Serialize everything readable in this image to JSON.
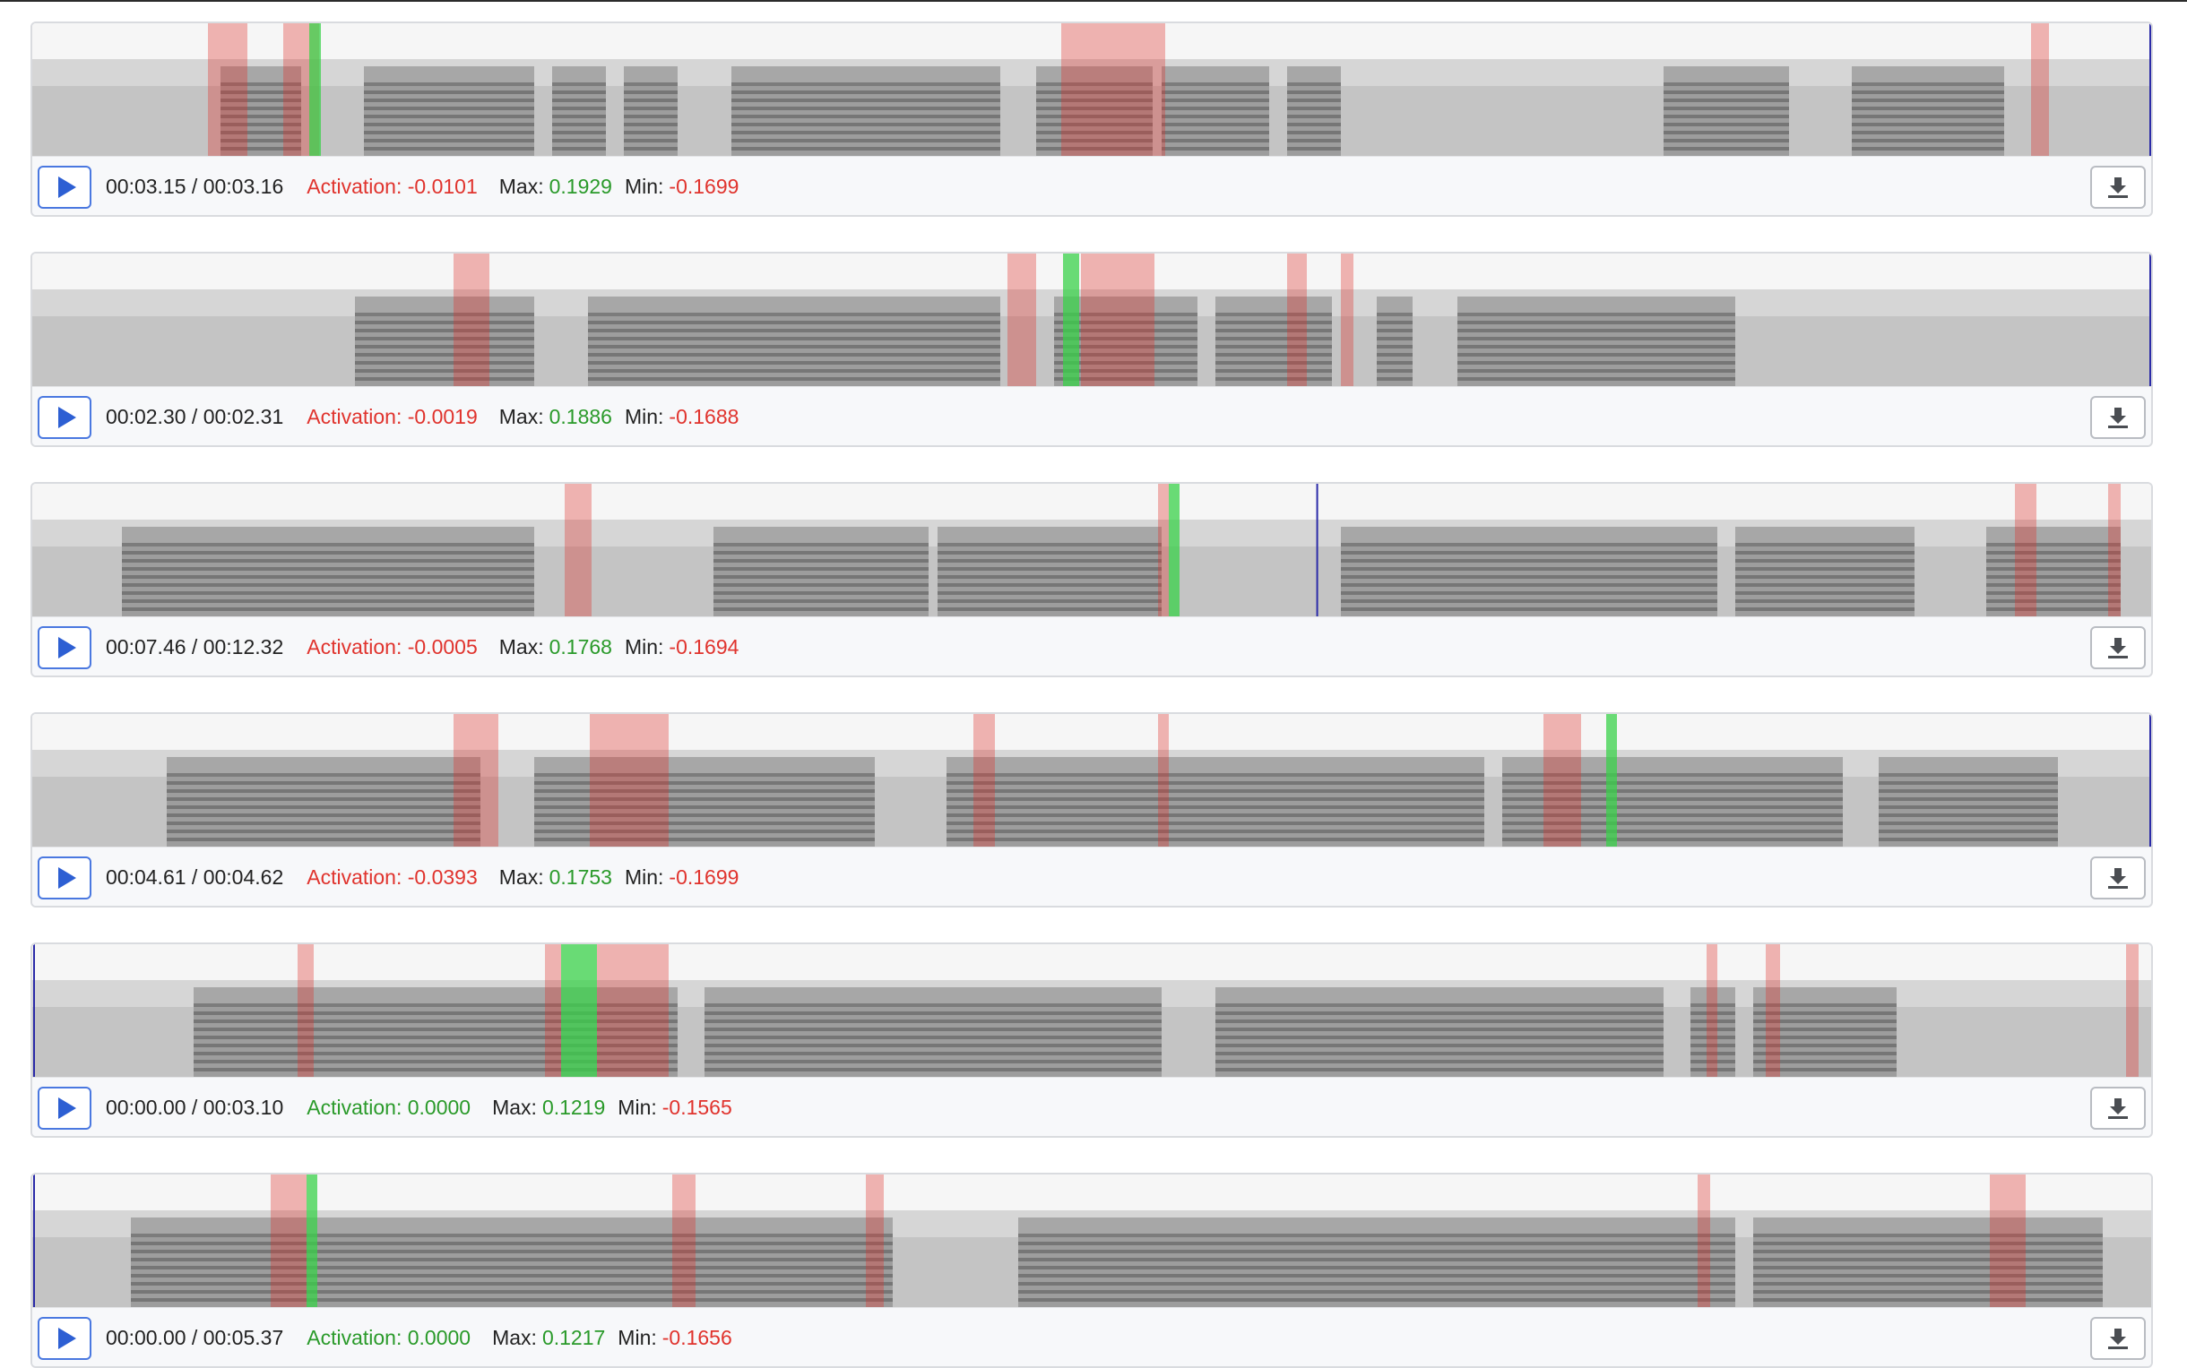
{
  "colors": {
    "negative": "#e0332d",
    "positive": "#2a9a2a",
    "play": "#2d5fd3"
  },
  "icons": {
    "play": "play-icon",
    "download": "download-icon"
  },
  "labels": {
    "activation": "Activation:",
    "max": "Max:",
    "min": "Min:"
  },
  "clips": [
    {
      "time": "00:03.15 / 00:03.16",
      "activation": "-0.0101",
      "activation_sign": "neg",
      "max": "0.1929",
      "min": "-0.1699",
      "progress": 1.0
    },
    {
      "time": "00:02.30 / 00:02.31",
      "activation": "-0.0019",
      "activation_sign": "neg",
      "max": "0.1886",
      "min": "-0.1688",
      "progress": 1.0
    },
    {
      "time": "00:07.46 / 00:12.32",
      "activation": "-0.0005",
      "activation_sign": "neg",
      "max": "0.1768",
      "min": "-0.1694",
      "progress": 0.606
    },
    {
      "time": "00:04.61 / 00:04.62",
      "activation": "-0.0393",
      "activation_sign": "neg",
      "max": "0.1753",
      "min": "-0.1699",
      "progress": 1.0
    },
    {
      "time": "00:00.00 / 00:03.10",
      "activation": "0.0000",
      "activation_sign": "pos",
      "max": "0.1219",
      "min": "-0.1565",
      "progress": 0.0
    },
    {
      "time": "00:00.00 / 00:05.37",
      "activation": "0.0000",
      "activation_sign": "pos",
      "max": "0.1217",
      "min": "-0.1656",
      "progress": 0.0
    }
  ]
}
